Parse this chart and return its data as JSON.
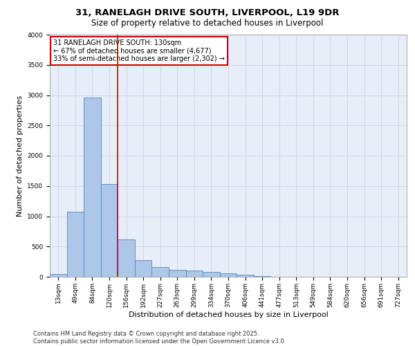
{
  "title_line1": "31, RANELAGH DRIVE SOUTH, LIVERPOOL, L19 9DR",
  "title_line2": "Size of property relative to detached houses in Liverpool",
  "xlabel": "Distribution of detached houses by size in Liverpool",
  "ylabel": "Number of detached properties",
  "categories": [
    "13sqm",
    "49sqm",
    "84sqm",
    "120sqm",
    "156sqm",
    "192sqm",
    "227sqm",
    "263sqm",
    "299sqm",
    "334sqm",
    "370sqm",
    "406sqm",
    "441sqm",
    "477sqm",
    "513sqm",
    "549sqm",
    "584sqm",
    "620sqm",
    "656sqm",
    "691sqm",
    "727sqm"
  ],
  "values": [
    50,
    1080,
    2960,
    1530,
    620,
    270,
    160,
    120,
    100,
    80,
    55,
    30,
    10,
    0,
    0,
    0,
    0,
    0,
    0,
    0,
    0
  ],
  "bar_color": "#aec6e8",
  "bar_edge_color": "#4f86c0",
  "vline_color": "#cc0000",
  "vline_pos": 3.5,
  "annotation_title": "31 RANELAGH DRIVE SOUTH: 130sqm",
  "annotation_line1": "← 67% of detached houses are smaller (4,677)",
  "annotation_line2": "33% of semi-detached houses are larger (2,302) →",
  "annotation_box_color": "#cc0000",
  "ylim": [
    0,
    4000
  ],
  "yticks": [
    0,
    500,
    1000,
    1500,
    2000,
    2500,
    3000,
    3500,
    4000
  ],
  "grid_color": "#c8d4e8",
  "background_color": "#e8eef8",
  "footer_line1": "Contains HM Land Registry data © Crown copyright and database right 2025.",
  "footer_line2": "Contains public sector information licensed under the Open Government Licence v3.0.",
  "title_fontsize": 9.5,
  "subtitle_fontsize": 8.5,
  "axis_label_fontsize": 8,
  "tick_fontsize": 6.5,
  "annotation_fontsize": 7,
  "footer_fontsize": 6
}
